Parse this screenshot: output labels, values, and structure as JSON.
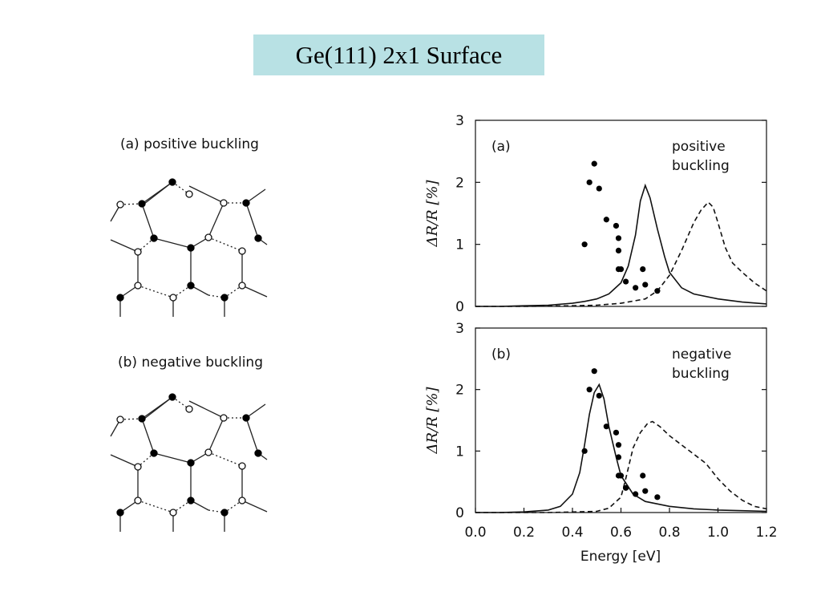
{
  "slide": {
    "title": "Ge(111) 2x1 Surface",
    "title_bg": "#b8e1e4"
  },
  "diagrams": {
    "a_caption": "(a) positive buckling",
    "b_caption": "(b) negative buckling"
  },
  "chart_data": [
    {
      "type": "line",
      "panel_label": "(a)",
      "annotation": [
        "positive",
        "buckling"
      ],
      "ylabel": "ΔR/R [%]",
      "xlabel": "",
      "xlim": [
        0.0,
        1.2
      ],
      "ylim": [
        0,
        3
      ],
      "yticks": [
        "0",
        "1",
        "2",
        "3"
      ],
      "series": [
        {
          "style": "solid",
          "x": [
            0.0,
            0.1,
            0.2,
            0.3,
            0.4,
            0.45,
            0.5,
            0.55,
            0.6,
            0.63,
            0.66,
            0.68,
            0.7,
            0.72,
            0.75,
            0.78,
            0.8,
            0.85,
            0.9,
            1.0,
            1.1,
            1.2
          ],
          "y": [
            0.0,
            0.0,
            0.01,
            0.02,
            0.05,
            0.08,
            0.12,
            0.2,
            0.38,
            0.65,
            1.15,
            1.7,
            1.95,
            1.75,
            1.25,
            0.8,
            0.55,
            0.3,
            0.2,
            0.12,
            0.07,
            0.04
          ]
        },
        {
          "style": "dashed",
          "x": [
            0.0,
            0.2,
            0.4,
            0.5,
            0.6,
            0.7,
            0.75,
            0.8,
            0.85,
            0.9,
            0.93,
            0.96,
            0.98,
            1.0,
            1.03,
            1.06,
            1.1,
            1.15,
            1.2
          ],
          "y": [
            0.0,
            0.0,
            0.01,
            0.02,
            0.05,
            0.12,
            0.25,
            0.5,
            0.9,
            1.35,
            1.55,
            1.68,
            1.6,
            1.35,
            0.95,
            0.7,
            0.55,
            0.38,
            0.25
          ]
        },
        {
          "style": "points",
          "x": [
            0.45,
            0.47,
            0.49,
            0.51,
            0.54,
            0.58,
            0.59,
            0.59,
            0.59,
            0.6,
            0.62,
            0.66,
            0.69,
            0.7,
            0.75
          ],
          "y": [
            1.0,
            2.0,
            2.3,
            1.9,
            1.4,
            1.3,
            1.1,
            0.9,
            0.6,
            0.6,
            0.4,
            0.3,
            0.6,
            0.35,
            0.25
          ]
        }
      ]
    },
    {
      "type": "line",
      "panel_label": "(b)",
      "annotation": [
        "negative",
        "buckling"
      ],
      "ylabel": "ΔR/R [%]",
      "xlabel": "Energy [eV]",
      "xlim": [
        0.0,
        1.2
      ],
      "ylim": [
        0,
        3
      ],
      "xticks": [
        "0.0",
        "0.2",
        "0.4",
        "0.6",
        "0.8",
        "1.0",
        "1.2"
      ],
      "yticks": [
        "0",
        "1",
        "2",
        "3"
      ],
      "series": [
        {
          "style": "solid",
          "x": [
            0.0,
            0.1,
            0.2,
            0.3,
            0.35,
            0.4,
            0.43,
            0.45,
            0.47,
            0.49,
            0.51,
            0.53,
            0.55,
            0.58,
            0.6,
            0.65,
            0.7,
            0.8,
            0.9,
            1.0,
            1.1,
            1.2
          ],
          "y": [
            0.0,
            0.0,
            0.01,
            0.04,
            0.1,
            0.3,
            0.65,
            1.1,
            1.6,
            1.95,
            2.08,
            1.85,
            1.4,
            0.9,
            0.6,
            0.3,
            0.18,
            0.1,
            0.06,
            0.04,
            0.03,
            0.02
          ]
        },
        {
          "style": "dashed",
          "x": [
            0.0,
            0.3,
            0.5,
            0.55,
            0.6,
            0.62,
            0.65,
            0.68,
            0.71,
            0.73,
            0.76,
            0.8,
            0.85,
            0.9,
            0.95,
            1.0,
            1.05,
            1.1,
            1.15,
            1.2
          ],
          "y": [
            0.0,
            0.0,
            0.02,
            0.07,
            0.25,
            0.55,
            1.05,
            1.3,
            1.45,
            1.48,
            1.4,
            1.25,
            1.1,
            0.95,
            0.8,
            0.55,
            0.35,
            0.2,
            0.1,
            0.06
          ]
        },
        {
          "style": "points",
          "x": [
            0.45,
            0.47,
            0.49,
            0.51,
            0.54,
            0.58,
            0.59,
            0.59,
            0.59,
            0.6,
            0.62,
            0.66,
            0.69,
            0.7,
            0.75
          ],
          "y": [
            1.0,
            2.0,
            2.3,
            1.9,
            1.4,
            1.3,
            1.1,
            0.9,
            0.6,
            0.6,
            0.4,
            0.3,
            0.6,
            0.35,
            0.25
          ]
        }
      ]
    }
  ]
}
